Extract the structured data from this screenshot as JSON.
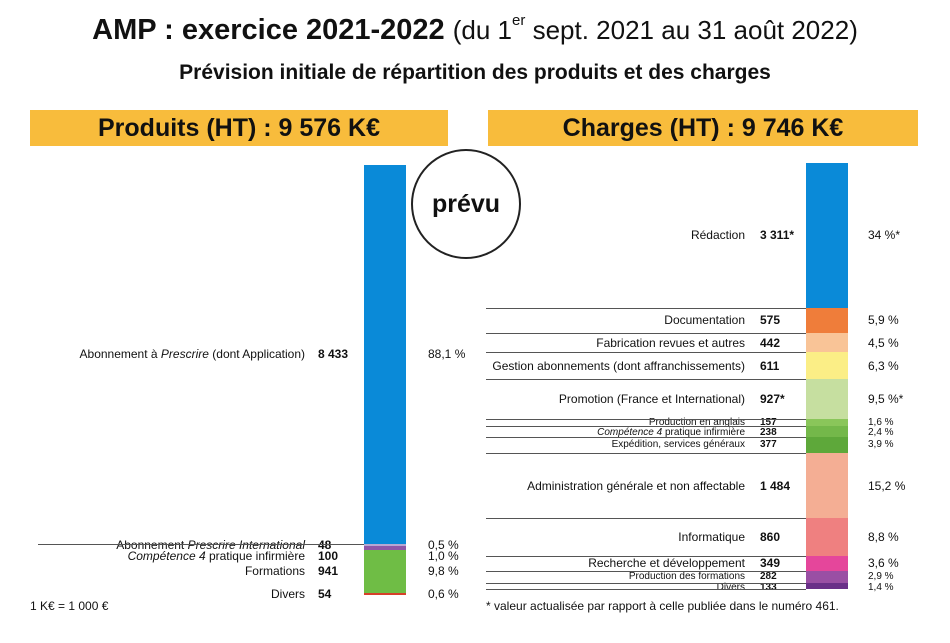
{
  "header": {
    "title_main": "AMP : exercice 2021-2022",
    "title_range_pre": "(du 1",
    "title_range_sup": "er",
    "title_range_post": " sept. 2021 au 31 août 2022)",
    "subtitle": "Prévision initiale de répartition des produits et des charges"
  },
  "badge": "prévu",
  "footnote_left": "1 K€ = 1 000 €",
  "footnote_right": "* valeur actualisée par rapport à celle publiée dans le numéro 461.",
  "chart_data": [
    {
      "type": "bar",
      "stacked": true,
      "title": "Produits (HT) : 9 576 K€",
      "total": 9576,
      "unit": "K€",
      "segments": [
        {
          "label": "Abonnement à Prescrire (dont Application)",
          "value": "8 433",
          "amount": 8433,
          "percent": "88,1 %",
          "color": "#0a8ad8"
        },
        {
          "label": "Abonnement Prescrire International",
          "value": "48",
          "amount": 48,
          "percent": "0,5 %",
          "color": "#b7a7d2"
        },
        {
          "label": "Compétence 4 pratique infirmière",
          "value": "100",
          "amount": 100,
          "percent": "1,0 %",
          "color": "#8e58a8"
        },
        {
          "label": "Formations",
          "value": "941",
          "amount": 941,
          "percent": "9,8 %",
          "color": "#6fbd45"
        },
        {
          "label": "Divers",
          "value": "54",
          "amount": 54,
          "percent": "0,6 %",
          "color": "#d6402a"
        }
      ]
    },
    {
      "type": "bar",
      "stacked": true,
      "title": "Charges (HT) : 9 746 K€",
      "total": 9746,
      "unit": "K€",
      "segments": [
        {
          "label": "Rédaction",
          "value": "3 311*",
          "amount": 3311,
          "percent": "34 %*",
          "color": "#0a8ad8"
        },
        {
          "label": "Documentation",
          "value": "575",
          "amount": 575,
          "percent": "5,9 %",
          "color": "#ef7d3a"
        },
        {
          "label": "Fabrication revues et autres",
          "value": "442",
          "amount": 442,
          "percent": "4,5 %",
          "color": "#f9c497"
        },
        {
          "label": "Gestion abonnements (dont affranchissements)",
          "value": "611",
          "amount": 611,
          "percent": "6,3 %",
          "color": "#fbee86"
        },
        {
          "label": "Promotion (France et International)",
          "value": "927*",
          "amount": 927,
          "percent": "9,5 %*",
          "color": "#c6dfa0"
        },
        {
          "label": "Production en anglais",
          "value": "157",
          "amount": 157,
          "percent": "1,6 %",
          "color": "#8ac65a"
        },
        {
          "label": "Compétence 4 pratique infirmière",
          "value": "238",
          "amount": 238,
          "percent": "2,4 %",
          "color": "#74b84a"
        },
        {
          "label": "Expédition, services généraux",
          "value": "377",
          "amount": 377,
          "percent": "3,9 %",
          "color": "#5ea83a"
        },
        {
          "label": "Administration générale et non affectable",
          "value": "1 484",
          "amount": 1484,
          "percent": "15,2 %",
          "color": "#f4ae94"
        },
        {
          "label": "Informatique",
          "value": "860",
          "amount": 860,
          "percent": "8,8 %",
          "color": "#ef8080"
        },
        {
          "label": "Recherche et développement",
          "value": "349",
          "amount": 349,
          "percent": "3,6 %",
          "color": "#e5469b"
        },
        {
          "label": "Production des formations",
          "value": "282",
          "amount": 282,
          "percent": "2,9 %",
          "color": "#9a4fa4"
        },
        {
          "label": "Divers",
          "value": "133",
          "amount": 133,
          "percent": "1,4 %",
          "color": "#6a2f88"
        }
      ]
    }
  ]
}
